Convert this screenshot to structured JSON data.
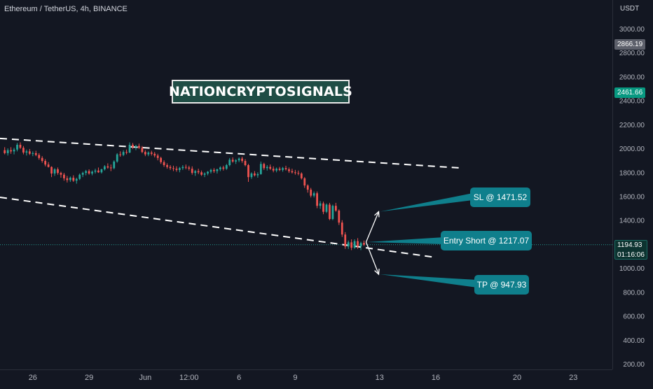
{
  "header": {
    "symbol": "Ethereum / TetherUS, 4h, BINANCE",
    "currency": "USDT"
  },
  "watermark": {
    "text": "NATIONCRYPTOSIGNALS"
  },
  "price_labels": {
    "high_tag": "2866.19",
    "mid_tag": "2461.66",
    "current_price": "1194.93",
    "countdown": "01:16:06"
  },
  "annotations": {
    "sl": "SL @ 1471.52",
    "entry": "Entry Short @ 1217.07",
    "tp": "TP @ 947.93"
  },
  "colors": {
    "background": "#131722",
    "up": "#26a69a",
    "down": "#ef5350",
    "callout": "#0f7f8c",
    "trendline": "#ffffff"
  },
  "chart_data": {
    "type": "candlestick",
    "title": "Ethereum / TetherUS, 4h, BINANCE",
    "ylabel": "USDT",
    "ylim": [
      150,
      3120
    ],
    "y_ticks": [
      200,
      400,
      600,
      800,
      1000,
      1200,
      1400,
      1600,
      1800,
      2000,
      2200,
      2400,
      2600,
      2800,
      3000
    ],
    "y_tick_labels": [
      "200.00",
      "400.00",
      "600.00",
      "800.00",
      "1000.00",
      "1200.00",
      "1400.00",
      "1600.00",
      "1800.00",
      "2000.00",
      "2200.00",
      "2400.00",
      "2600.00",
      "2800.00",
      "3000.00"
    ],
    "x_ticks": [
      {
        "bar": 9,
        "label": "26"
      },
      {
        "bar": 27,
        "label": "29"
      },
      {
        "bar": 45,
        "label": "Jun"
      },
      {
        "bar": 59,
        "label": "12:00"
      },
      {
        "bar": 75,
        "label": "6"
      },
      {
        "bar": 93,
        "label": "9"
      },
      {
        "bar": 120,
        "label": "13"
      },
      {
        "bar": 138,
        "label": "16"
      },
      {
        "bar": 164,
        "label": "20"
      },
      {
        "bar": 182,
        "label": "23"
      }
    ],
    "x_range_bars": [
      -1.5,
      194.5
    ],
    "series": [
      {
        "ohlc": [
          [
            1985,
            2010,
            1950,
            1960
          ],
          [
            1960,
            2000,
            1940,
            1985
          ],
          [
            1985,
            2010,
            1955,
            1975
          ],
          [
            1975,
            2005,
            1950,
            1990
          ],
          [
            1990,
            2045,
            1975,
            2030
          ],
          [
            2030,
            2050,
            1995,
            2005
          ],
          [
            2005,
            2020,
            1950,
            1965
          ],
          [
            1965,
            1990,
            1940,
            1975
          ],
          [
            1975,
            1995,
            1945,
            1955
          ],
          [
            1955,
            1975,
            1935,
            1960
          ],
          [
            1960,
            1980,
            1935,
            1945
          ],
          [
            1945,
            1960,
            1905,
            1920
          ],
          [
            1920,
            1935,
            1880,
            1895
          ],
          [
            1895,
            1910,
            1850,
            1865
          ],
          [
            1865,
            1885,
            1840,
            1845
          ],
          [
            1845,
            1850,
            1760,
            1790
          ],
          [
            1790,
            1835,
            1770,
            1825
          ],
          [
            1825,
            1840,
            1780,
            1795
          ],
          [
            1795,
            1805,
            1755,
            1780
          ],
          [
            1780,
            1795,
            1730,
            1750
          ],
          [
            1750,
            1770,
            1715,
            1735
          ],
          [
            1735,
            1765,
            1720,
            1755
          ],
          [
            1755,
            1775,
            1720,
            1730
          ],
          [
            1730,
            1755,
            1705,
            1745
          ],
          [
            1745,
            1790,
            1735,
            1780
          ],
          [
            1780,
            1805,
            1760,
            1795
          ],
          [
            1795,
            1820,
            1775,
            1810
          ],
          [
            1810,
            1825,
            1780,
            1790
          ],
          [
            1790,
            1815,
            1775,
            1805
          ],
          [
            1805,
            1830,
            1790,
            1815
          ],
          [
            1815,
            1840,
            1795,
            1800
          ],
          [
            1800,
            1830,
            1790,
            1825
          ],
          [
            1825,
            1860,
            1815,
            1850
          ],
          [
            1850,
            1875,
            1830,
            1840
          ],
          [
            1840,
            1865,
            1810,
            1835
          ],
          [
            1835,
            1900,
            1825,
            1890
          ],
          [
            1890,
            1960,
            1880,
            1950
          ],
          [
            1950,
            1975,
            1930,
            1945
          ],
          [
            1945,
            1985,
            1935,
            1970
          ],
          [
            1970,
            1990,
            1950,
            1965
          ],
          [
            1965,
            2050,
            1960,
            2030
          ],
          [
            2030,
            2045,
            1995,
            2010
          ],
          [
            2010,
            2030,
            1985,
            2020
          ],
          [
            2020,
            2040,
            1995,
            2005
          ],
          [
            2005,
            2020,
            1960,
            1970
          ],
          [
            1970,
            1985,
            1935,
            1950
          ],
          [
            1950,
            1975,
            1935,
            1965
          ],
          [
            1965,
            1980,
            1940,
            1955
          ],
          [
            1955,
            1970,
            1925,
            1940
          ],
          [
            1940,
            1955,
            1900,
            1920
          ],
          [
            1920,
            1930,
            1870,
            1885
          ],
          [
            1885,
            1900,
            1845,
            1860
          ],
          [
            1860,
            1875,
            1830,
            1845
          ],
          [
            1845,
            1860,
            1820,
            1835
          ],
          [
            1835,
            1855,
            1810,
            1830
          ],
          [
            1830,
            1850,
            1805,
            1820
          ],
          [
            1820,
            1845,
            1800,
            1835
          ],
          [
            1835,
            1860,
            1820,
            1845
          ],
          [
            1845,
            1865,
            1825,
            1840
          ],
          [
            1840,
            1855,
            1815,
            1830
          ],
          [
            1830,
            1850,
            1780,
            1795
          ],
          [
            1795,
            1820,
            1770,
            1810
          ],
          [
            1810,
            1830,
            1785,
            1800
          ],
          [
            1800,
            1815,
            1770,
            1780
          ],
          [
            1780,
            1800,
            1760,
            1790
          ],
          [
            1790,
            1810,
            1775,
            1805
          ],
          [
            1805,
            1830,
            1790,
            1820
          ],
          [
            1820,
            1835,
            1795,
            1810
          ],
          [
            1810,
            1830,
            1790,
            1825
          ],
          [
            1825,
            1850,
            1810,
            1840
          ],
          [
            1840,
            1855,
            1815,
            1830
          ],
          [
            1830,
            1870,
            1820,
            1860
          ],
          [
            1860,
            1920,
            1850,
            1905
          ],
          [
            1905,
            1925,
            1880,
            1890
          ],
          [
            1890,
            1910,
            1870,
            1900
          ],
          [
            1900,
            1925,
            1885,
            1915
          ],
          [
            1915,
            1930,
            1880,
            1895
          ],
          [
            1895,
            1910,
            1850,
            1860
          ],
          [
            1860,
            1870,
            1720,
            1760
          ],
          [
            1760,
            1800,
            1745,
            1790
          ],
          [
            1790,
            1810,
            1765,
            1775
          ],
          [
            1775,
            1800,
            1755,
            1785
          ],
          [
            1785,
            1890,
            1780,
            1870
          ],
          [
            1870,
            1880,
            1820,
            1835
          ],
          [
            1835,
            1860,
            1815,
            1845
          ],
          [
            1845,
            1865,
            1820,
            1830
          ],
          [
            1830,
            1850,
            1800,
            1815
          ],
          [
            1815,
            1840,
            1800,
            1830
          ],
          [
            1830,
            1845,
            1810,
            1820
          ],
          [
            1820,
            1845,
            1805,
            1835
          ],
          [
            1835,
            1855,
            1815,
            1825
          ],
          [
            1825,
            1840,
            1795,
            1810
          ],
          [
            1810,
            1830,
            1790,
            1800
          ],
          [
            1800,
            1820,
            1780,
            1795
          ],
          [
            1795,
            1815,
            1775,
            1790
          ],
          [
            1790,
            1800,
            1740,
            1750
          ],
          [
            1750,
            1760,
            1670,
            1690
          ],
          [
            1690,
            1700,
            1630,
            1655
          ],
          [
            1655,
            1670,
            1590,
            1605
          ],
          [
            1605,
            1640,
            1590,
            1625
          ],
          [
            1625,
            1640,
            1500,
            1520
          ],
          [
            1520,
            1560,
            1495,
            1540
          ],
          [
            1540,
            1555,
            1450,
            1470
          ],
          [
            1470,
            1540,
            1460,
            1530
          ],
          [
            1530,
            1545,
            1400,
            1410
          ],
          [
            1410,
            1530,
            1400,
            1520
          ],
          [
            1520,
            1545,
            1470,
            1480
          ],
          [
            1480,
            1490,
            1360,
            1380
          ],
          [
            1380,
            1400,
            1260,
            1280
          ],
          [
            1280,
            1300,
            1160,
            1180
          ],
          [
            1180,
            1230,
            1160,
            1215
          ],
          [
            1215,
            1240,
            1150,
            1170
          ],
          [
            1170,
            1240,
            1160,
            1225
          ],
          [
            1225,
            1250,
            1160,
            1180
          ],
          [
            1180,
            1220,
            1150,
            1210
          ],
          [
            1210,
            1230,
            1185,
            1195
          ]
        ]
      }
    ],
    "trendlines": [
      {
        "from": {
          "bar": -1.5,
          "price": 2083
        },
        "to": {
          "bar": 146,
          "price": 1836
        },
        "style": "dashed"
      },
      {
        "from": {
          "bar": -1.5,
          "price": 1591
        },
        "to": {
          "bar": 138,
          "price": 1089
        },
        "style": "dashed"
      }
    ],
    "levels": {
      "sl": 1471.52,
      "entry": 1217.07,
      "tp": 947.93,
      "last_price": 1194.93
    }
  }
}
